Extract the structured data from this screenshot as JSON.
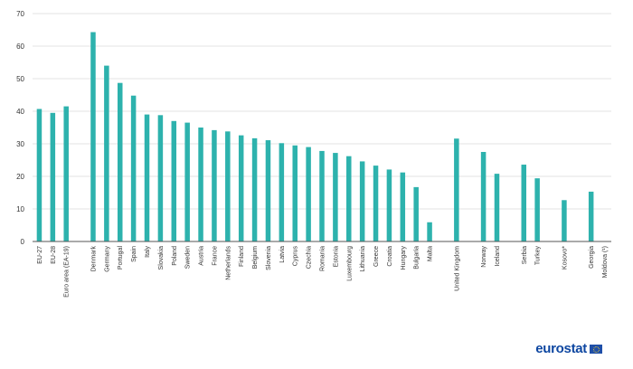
{
  "chart_data": {
    "type": "bar",
    "title": "",
    "xlabel": "",
    "ylabel": "",
    "ylim": [
      0,
      70
    ],
    "yticks": [
      0,
      10,
      20,
      30,
      40,
      50,
      60,
      70
    ],
    "grid": true,
    "bar_color": "#2db2ad",
    "categories": [
      "EU-27",
      "EU-28",
      "Euro area (EA-19)",
      "",
      "Denmark",
      "Germany",
      "Portugal",
      "Spain",
      "Italy",
      "Slovakia",
      "Poland",
      "Sweden",
      "Austria",
      "France",
      "Netherlands",
      "Finland",
      "Belgium",
      "Slovenia",
      "Latvia",
      "Cyprus",
      "Czechia",
      "Romania",
      "Estonia",
      "Luxembourg",
      "Lithuania",
      "Greece",
      "Croatia",
      "Hungary",
      "Bulgaria",
      "Malta",
      "",
      "United Kingdom",
      "",
      "Norway",
      "Iceland",
      "",
      "Serbia",
      "Turkey",
      "",
      "Kosovo*",
      "",
      "Georgia",
      "Moldova (¹)"
    ],
    "values": [
      40.7,
      39.5,
      41.5,
      null,
      64.3,
      54.0,
      48.7,
      44.8,
      39.0,
      38.8,
      37.0,
      36.5,
      35.0,
      34.2,
      33.8,
      32.6,
      31.7,
      31.1,
      30.2,
      29.5,
      29.0,
      27.8,
      27.2,
      26.2,
      24.6,
      23.3,
      22.1,
      21.2,
      16.7,
      5.9,
      null,
      31.6,
      null,
      27.5,
      20.8,
      null,
      23.6,
      19.4,
      null,
      12.7,
      null,
      15.3,
      null
    ]
  },
  "branding": {
    "logo_text": "eurostat"
  }
}
